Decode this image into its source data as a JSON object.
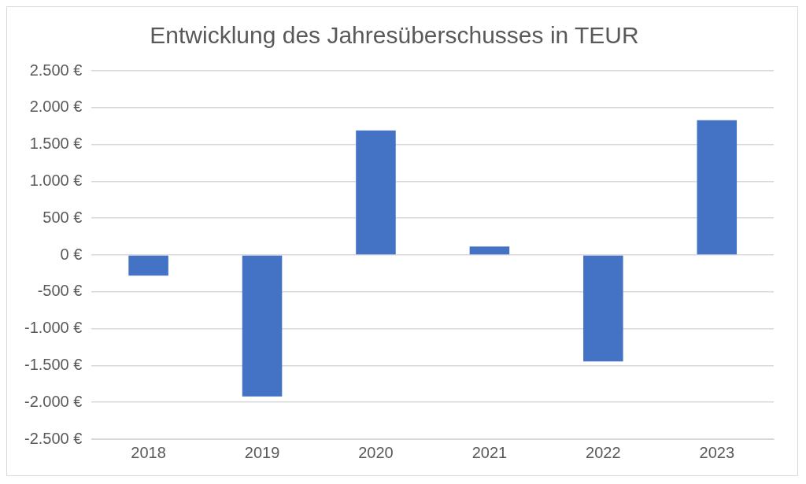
{
  "chart_data": {
    "type": "bar",
    "title": "Entwicklung des Jahresüberschusses in TEUR",
    "categories": [
      "2018",
      "2019",
      "2020",
      "2021",
      "2022",
      "2023"
    ],
    "values": [
      -280,
      -1920,
      1690,
      115,
      -1445,
      1830
    ],
    "color": "#4472c4",
    "ylim": [
      -2500,
      2500
    ],
    "yticks": [
      {
        "value": -2500,
        "label": "-2.500 €"
      },
      {
        "value": -2000,
        "label": "-2.000 €"
      },
      {
        "value": -1500,
        "label": "-1.500 €"
      },
      {
        "value": -1000,
        "label": "-1.000 €"
      },
      {
        "value": -500,
        "label": "-500 €"
      },
      {
        "value": 0,
        "label": "0 €"
      },
      {
        "value": 500,
        "label": "500 €"
      },
      {
        "value": 1000,
        "label": "1.000 €"
      },
      {
        "value": 1500,
        "label": "1.500 €"
      },
      {
        "value": 2000,
        "label": "2.000 €"
      },
      {
        "value": 2500,
        "label": "2.500 €"
      }
    ],
    "grid": "y"
  }
}
